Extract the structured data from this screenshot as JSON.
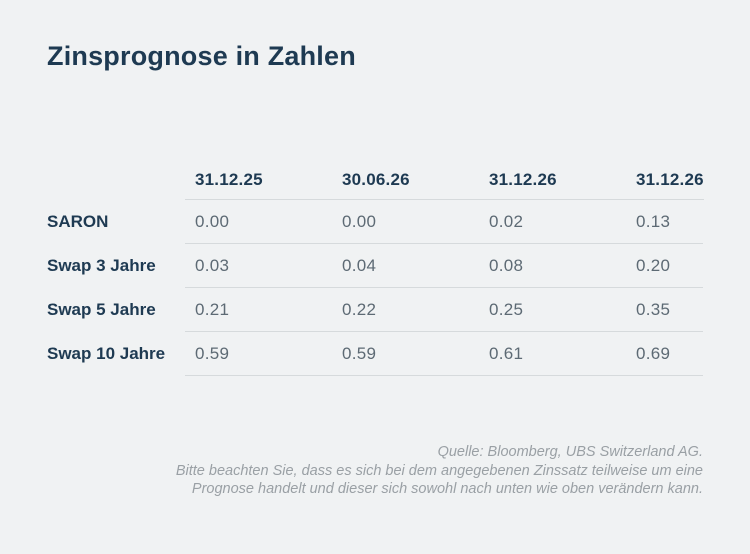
{
  "title": "Zinsprognose in Zahlen",
  "table": {
    "column_headers": [
      "31.12.25",
      "30.06.26",
      "31.12.26",
      "31.12.26"
    ],
    "rows": [
      {
        "label": "SARON",
        "values": [
          "0.00",
          "0.00",
          "0.02",
          "0.13"
        ]
      },
      {
        "label": "Swap 3 Jahre",
        "values": [
          "0.03",
          "0.04",
          "0.08",
          "0.20"
        ]
      },
      {
        "label": "Swap 5 Jahre",
        "values": [
          "0.21",
          "0.22",
          "0.25",
          "0.35"
        ]
      },
      {
        "label": "Swap 10 Jahre",
        "values": [
          "0.59",
          "0.59",
          "0.61",
          "0.69"
        ]
      }
    ]
  },
  "footer": {
    "source": "Quelle: Bloomberg, UBS Switzerland AG.",
    "disclaimer_line1": "Bitte beachten Sie, dass es sich bei dem angegebenen Zinssatz teilweise um eine",
    "disclaimer_line2": "Prognose handelt und dieser sich sowohl nach unten wie oben verändern kann."
  },
  "colors": {
    "background": "#f0f2f3",
    "heading_text": "#1e3a52",
    "value_text": "#5d6a74",
    "divider": "#d6dadc",
    "footer_text": "#9aa0a5"
  },
  "chart_data": {
    "type": "table",
    "title": "Zinsprognose in Zahlen",
    "columns": [
      "",
      "31.12.25",
      "30.06.26",
      "31.12.26",
      "31.12.26"
    ],
    "rows": [
      [
        "SARON",
        0.0,
        0.0,
        0.02,
        0.13
      ],
      [
        "Swap 3 Jahre",
        0.03,
        0.04,
        0.08,
        0.2
      ],
      [
        "Swap 5 Jahre",
        0.21,
        0.22,
        0.25,
        0.35
      ],
      [
        "Swap 10 Jahre",
        0.59,
        0.59,
        0.61,
        0.69
      ]
    ],
    "source": "Quelle: Bloomberg, UBS Switzerland AG.",
    "note": "Bitte beachten Sie, dass es sich bei dem angegebenen Zinssatz teilweise um eine Prognose handelt und dieser sich sowohl nach unten wie oben verändern kann."
  }
}
